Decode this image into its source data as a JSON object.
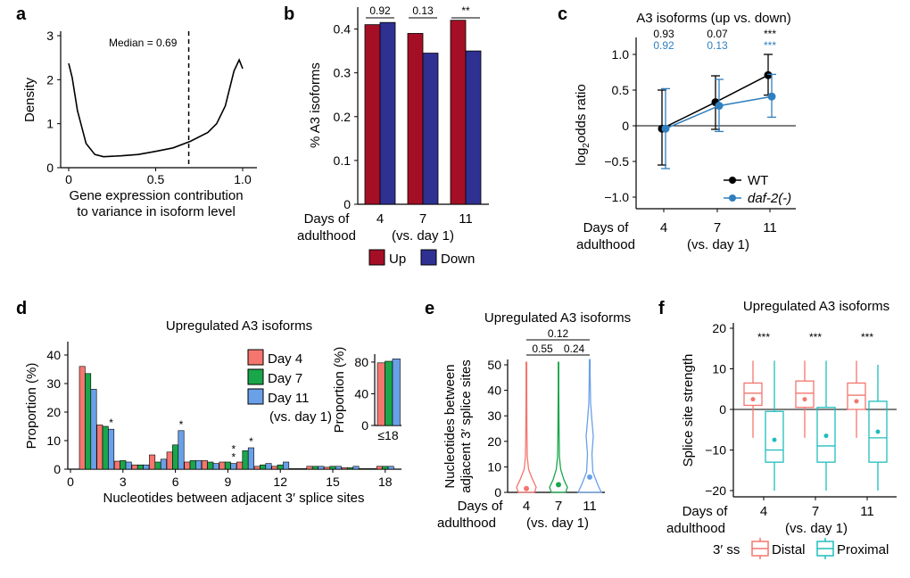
{
  "colors": {
    "up": "#a50f26",
    "down": "#2e3192",
    "wt": "#000000",
    "daf2": "#2f7fbf",
    "day4": "#f4766e",
    "day7": "#1aa64a",
    "day11": "#6aa0e8",
    "distal": "#f4766e",
    "proximal": "#20bdbd"
  },
  "chart_data": [
    {
      "panel": "a",
      "type": "line",
      "xlabel": [
        "Gene expression contribution",
        "to variance in isoform level"
      ],
      "ylabel": "Density",
      "xlim": [
        0,
        1
      ],
      "ylim": [
        0,
        3
      ],
      "xticks": [
        "0",
        "0.5",
        "1.0"
      ],
      "yticks": [
        "0",
        "1",
        "2",
        "3"
      ],
      "x": [
        0,
        0.02,
        0.05,
        0.1,
        0.15,
        0.2,
        0.3,
        0.4,
        0.5,
        0.6,
        0.7,
        0.8,
        0.85,
        0.9,
        0.95,
        0.98,
        1.0
      ],
      "y": [
        2.37,
        2.05,
        1.3,
        0.55,
        0.3,
        0.25,
        0.27,
        0.3,
        0.37,
        0.45,
        0.6,
        0.8,
        1.0,
        1.4,
        2.2,
        2.45,
        2.25
      ],
      "annotation": "Median = 0.69",
      "median": 0.69
    },
    {
      "panel": "b",
      "type": "bar",
      "ylabel": "% A3 isoforms",
      "ylim": [
        0,
        0.45
      ],
      "yticks": [
        "0",
        "0.1",
        "0.2",
        "0.3",
        "0.4"
      ],
      "categories": [
        "4",
        "7",
        "11"
      ],
      "xlabel": [
        "Days of",
        "adulthood"
      ],
      "xnote": "(vs. day 1)",
      "series": [
        {
          "name": "Up",
          "values": [
            0.41,
            0.39,
            0.42
          ]
        },
        {
          "name": "Down",
          "values": [
            0.415,
            0.345,
            0.35
          ]
        }
      ],
      "pvalues": [
        "0.92",
        "0.13",
        "**"
      ],
      "legend": [
        "Up",
        "Down"
      ]
    },
    {
      "panel": "c",
      "type": "line",
      "title": "A3 isoforms (up vs. down)",
      "ylabel": "log2odds ratio",
      "ylim": [
        -1.2,
        1.25
      ],
      "yticks": [
        "−1.0",
        "−0.5",
        "0",
        "0.5",
        "1.0"
      ],
      "categories": [
        "4",
        "7",
        "11"
      ],
      "xlabel": [
        "Days of",
        "adulthood"
      ],
      "xnote": "(vs. day 1)",
      "series": [
        {
          "name": "WT",
          "values": [
            -0.04,
            0.33,
            0.71
          ],
          "lower": [
            -0.55,
            -0.05,
            0.43
          ],
          "upper": [
            0.5,
            0.7,
            1.0
          ],
          "pvalues": [
            "0.93",
            "0.07",
            "***"
          ]
        },
        {
          "name": "daf-2(-)",
          "values": [
            -0.04,
            0.28,
            0.41
          ],
          "lower": [
            -0.6,
            -0.08,
            0.12
          ],
          "upper": [
            0.52,
            0.65,
            0.72
          ],
          "pvalues": [
            "0.92",
            "0.13",
            "***"
          ]
        }
      ]
    },
    {
      "panel": "d",
      "type": "bar",
      "title": "Upregulated A3 isoforms",
      "xlabel": "Nucleotides between adjacent 3′ splice sites",
      "ylabel": "Proportion (%)",
      "xlim": [
        0,
        19
      ],
      "ylim": [
        0,
        42
      ],
      "xticks": [
        "0",
        "3",
        "6",
        "9",
        "12",
        "15",
        "18"
      ],
      "yticks": [
        "0",
        "10",
        "20",
        "30",
        "40"
      ],
      "x": [
        1,
        2,
        3,
        4,
        5,
        6,
        7,
        8,
        9,
        10,
        11,
        12,
        13,
        14,
        15,
        16,
        17,
        18
      ],
      "series": [
        {
          "name": "Day 4",
          "values": [
            36,
            15.5,
            2.8,
            1.5,
            5,
            6,
            2.5,
            3,
            2.5,
            2.5,
            1,
            1,
            0.2,
            1,
            0.7,
            0.5,
            0.2,
            1
          ]
        },
        {
          "name": "Day 7",
          "values": [
            33.5,
            15,
            3,
            1.5,
            2.5,
            8.5,
            3,
            2.5,
            2.5,
            6.5,
            1.5,
            1.5,
            0.2,
            1,
            1,
            0.5,
            0.2,
            1
          ]
        },
        {
          "name": "Day 11",
          "values": [
            28,
            14,
            2.5,
            1.5,
            3.5,
            13.5,
            3,
            2,
            2,
            7.5,
            2,
            2.5,
            0.2,
            1,
            1,
            1,
            0.2,
            1
          ]
        }
      ],
      "stars": {
        "x": [
          2,
          6,
          9,
          9,
          10
        ],
        "label": "*"
      },
      "legend": [
        "Day 4",
        "Day 7",
        "Day 11"
      ],
      "legend_note": "(vs. day 1)",
      "inset": {
        "ylabel": "Proportion (%)",
        "category": "≤18",
        "values": [
          79,
          81,
          84
        ],
        "yticks": [
          "0",
          "40",
          "80"
        ],
        "ylim": [
          0,
          90
        ]
      }
    },
    {
      "panel": "e",
      "type": "violin",
      "title": "Upregulated A3 isoforms",
      "ylabel": [
        "Nucleotides between",
        "adjacent 3′ splice sites"
      ],
      "ylim": [
        0,
        52
      ],
      "yticks": [
        "0",
        "10",
        "20",
        "30",
        "40",
        "50"
      ],
      "categories": [
        "4",
        "7",
        "11"
      ],
      "means": [
        1.5,
        3,
        6
      ],
      "xlabel": [
        "Days of",
        "adulthood"
      ],
      "xnote": "(vs. day 1)",
      "comparisons": [
        {
          "between": [
            "4",
            "11"
          ],
          "p": "0.12"
        },
        {
          "between": [
            "4",
            "7"
          ],
          "p": "0.55"
        },
        {
          "between": [
            "7",
            "11"
          ],
          "p": "0.24"
        }
      ]
    },
    {
      "panel": "f",
      "type": "box",
      "title": "Upregulated A3 isoforms",
      "ylabel": "Splice site strength",
      "ylim": [
        -22,
        21
      ],
      "yticks": [
        "−20",
        "−10",
        "0",
        "10",
        "20"
      ],
      "categories": [
        "4",
        "7",
        "11"
      ],
      "xlabel": [
        "Days of",
        "adulthood"
      ],
      "xnote": "(vs. day 1)",
      "series": [
        {
          "name": "Distal",
          "q1": [
            1,
            0.5,
            0
          ],
          "median": [
            4,
            4,
            3.5
          ],
          "q3": [
            6.5,
            7,
            6.5
          ],
          "whisker_low": [
            -7,
            -7,
            -7
          ],
          "whisker_high": [
            12,
            12,
            12
          ],
          "mean": [
            2.5,
            2.5,
            2
          ]
        },
        {
          "name": "Proximal",
          "q1": [
            -13,
            -13,
            -13
          ],
          "median": [
            -10,
            -9,
            -7
          ],
          "q3": [
            -0.5,
            0.5,
            2
          ],
          "whisker_low": [
            -20,
            -20,
            -20
          ],
          "whisker_high": [
            12,
            12,
            11
          ],
          "mean": [
            -7.5,
            -6.5,
            -5.5
          ]
        }
      ],
      "stars": [
        "***",
        "***",
        "***"
      ],
      "legend_title": "3′ ss",
      "legend": [
        "Distal",
        "Proximal"
      ]
    }
  ]
}
